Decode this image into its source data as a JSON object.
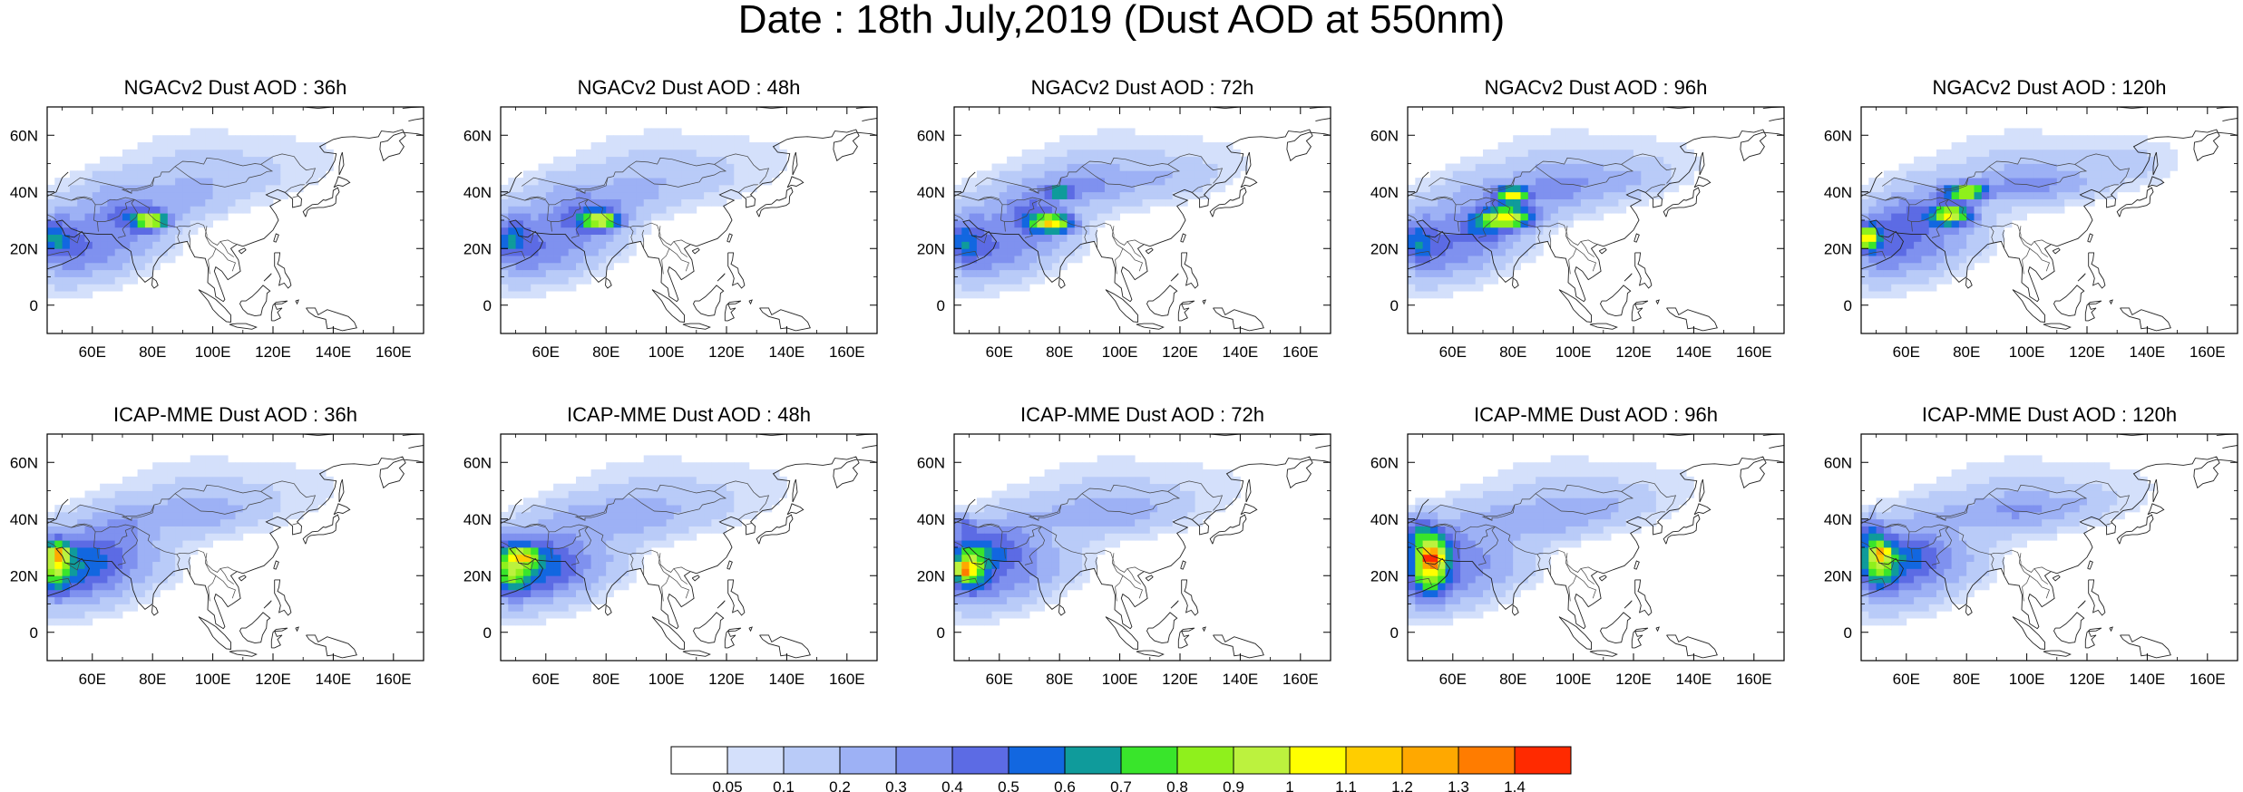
{
  "figure": {
    "title": "Date : 18th July,2019 (Dust AOD at 550nm)"
  },
  "axes": {
    "x_ticks": [
      "60E",
      "80E",
      "100E",
      "120E",
      "140E",
      "160E"
    ],
    "y_ticks": [
      "60N",
      "40N",
      "20N",
      "0"
    ]
  },
  "panels": [
    {
      "id": "ngac-36",
      "title": "NGACv2 Dust AOD : 36h",
      "model": "NGACv2",
      "lead_hours": 36
    },
    {
      "id": "ngac-48",
      "title": "NGACv2 Dust AOD : 48h",
      "model": "NGACv2",
      "lead_hours": 48
    },
    {
      "id": "ngac-72",
      "title": "NGACv2 Dust AOD : 72h",
      "model": "NGACv2",
      "lead_hours": 72
    },
    {
      "id": "ngac-96",
      "title": "NGACv2 Dust AOD : 96h",
      "model": "NGACv2",
      "lead_hours": 96
    },
    {
      "id": "ngac-120",
      "title": "NGACv2 Dust AOD : 120h",
      "model": "NGACv2",
      "lead_hours": 120
    },
    {
      "id": "icap-36",
      "title": "ICAP-MME Dust AOD : 36h",
      "model": "ICAP-MME",
      "lead_hours": 36
    },
    {
      "id": "icap-48",
      "title": "ICAP-MME Dust AOD : 48h",
      "model": "ICAP-MME",
      "lead_hours": 48
    },
    {
      "id": "icap-72",
      "title": "ICAP-MME Dust AOD : 72h",
      "model": "ICAP-MME",
      "lead_hours": 72
    },
    {
      "id": "icap-96",
      "title": "ICAP-MME Dust AOD : 96h",
      "model": "ICAP-MME",
      "lead_hours": 96
    },
    {
      "id": "icap-120",
      "title": "ICAP-MME Dust AOD : 120h",
      "model": "ICAP-MME",
      "lead_hours": 120
    }
  ],
  "colorbar": {
    "colors": [
      "#ffffff",
      "#d4e0fb",
      "#b9cbf8",
      "#9db1f5",
      "#7f91ef",
      "#5c6be4",
      "#1267e0",
      "#0f9b9b",
      "#39e52b",
      "#8ff01c",
      "#bcf23e",
      "#ffff00",
      "#ffcd00",
      "#ffa800",
      "#ff7c00",
      "#ff2a00"
    ],
    "tick_labels": [
      "0.05",
      "0.1",
      "0.2",
      "0.3",
      "0.4",
      "0.5",
      "0.6",
      "0.7",
      "0.8",
      "0.9",
      "1",
      "1.1",
      "1.2",
      "1.3",
      "1.4"
    ]
  }
}
